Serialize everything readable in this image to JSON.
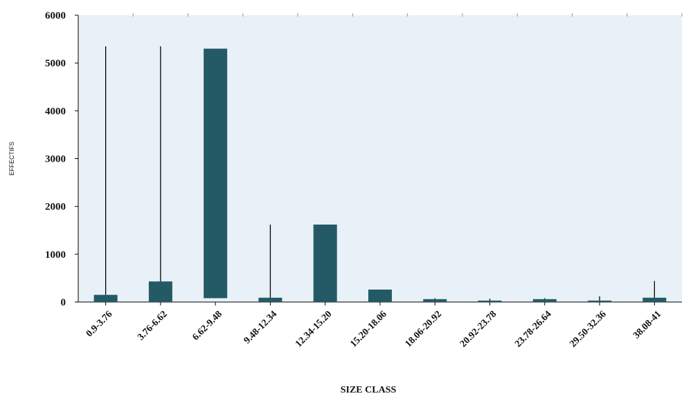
{
  "chart_data": {
    "type": "bar",
    "xlabel": "SIZE CLASS",
    "ylabel": "EFFECTIFS",
    "ylim": [
      0,
      6000
    ],
    "yticks": [
      0,
      1000,
      2000,
      3000,
      4000,
      5000,
      6000
    ],
    "grid": false,
    "colors": {
      "plot_background": "#e8f1f7",
      "bar": "#245a66",
      "whisker": "#000000",
      "axis": "#000000"
    },
    "categories": [
      "0.9-3.76",
      "3.76-6.62",
      "6.62-9.48",
      "9.48-12.34",
      "12.34-15.20",
      "15.20-18.06",
      "18.06-20.92",
      "20.92-23.78",
      "23.78-26.64",
      "29.50-32.36",
      "38.08-41"
    ],
    "values": [
      150,
      430,
      5300,
      90,
      1620,
      260,
      60,
      30,
      60,
      30,
      90
    ],
    "bar_bottoms": [
      0,
      0,
      80,
      0,
      0,
      0,
      0,
      0,
      0,
      0,
      0
    ],
    "whisker_tops": [
      5350,
      5350,
      null,
      1620,
      null,
      null,
      80,
      70,
      80,
      120,
      440
    ]
  }
}
